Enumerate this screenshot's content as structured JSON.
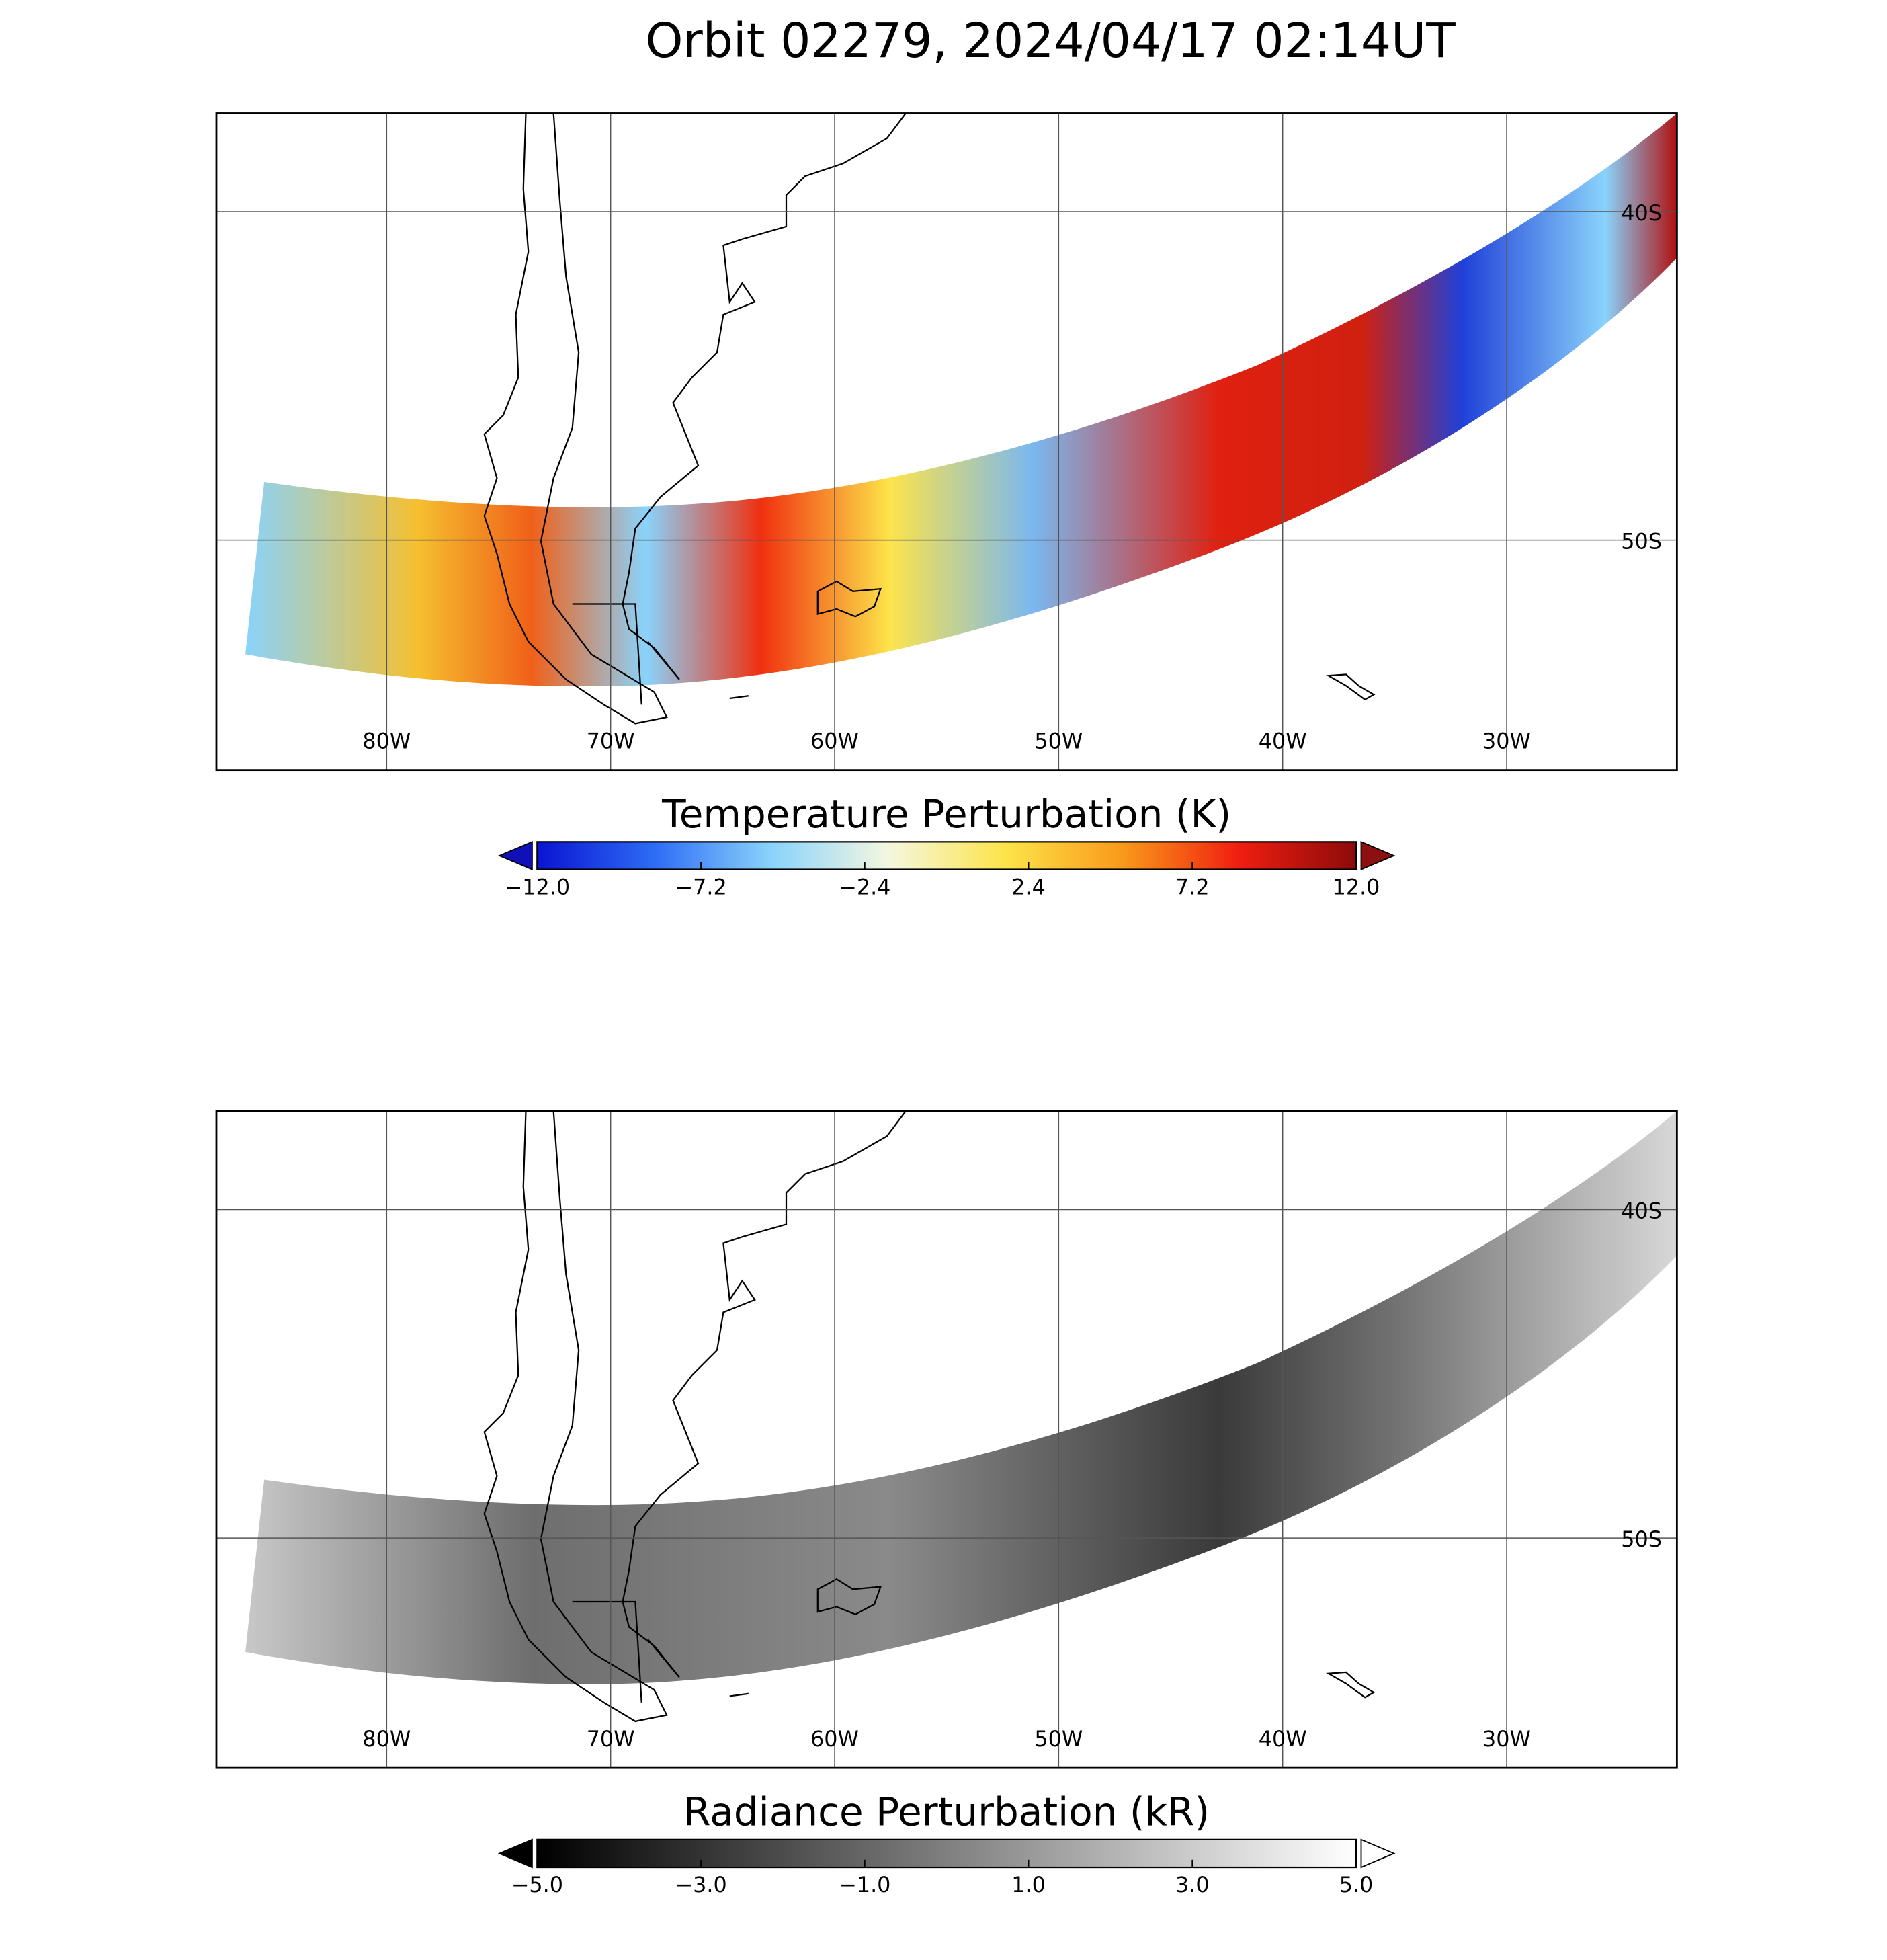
{
  "title": "Orbit 02279, 2024/04/17 02:14UT",
  "panels": [
    {
      "xlim": [
        -87.6,
        -22.4
      ],
      "ylim": [
        -57.0,
        -37.0
      ],
      "xticks": [
        {
          "value": -80,
          "label": "80W"
        },
        {
          "value": -70,
          "label": "70W"
        },
        {
          "value": -60,
          "label": "60W"
        },
        {
          "value": -50,
          "label": "50W"
        },
        {
          "value": -40,
          "label": "40W"
        },
        {
          "value": -30,
          "label": "30W"
        }
      ],
      "yticks": [
        {
          "value": -40,
          "label": "40S"
        },
        {
          "value": -50,
          "label": "50S"
        }
      ],
      "colorbar": {
        "title": "Temperature Perturbation (K)",
        "lim": [
          -12.0,
          12.0
        ],
        "ticks": [
          {
            "value": -12.0,
            "label": "−12.0"
          },
          {
            "value": -7.2,
            "label": "−7.2"
          },
          {
            "value": -2.4,
            "label": "−2.4"
          },
          {
            "value": 2.4,
            "label": "2.4"
          },
          {
            "value": 7.2,
            "label": "7.2"
          },
          {
            "value": 12.0,
            "label": "12.0"
          }
        ],
        "colormap": [
          "#0a14d2",
          "#2d6cf5",
          "#8ad3fb",
          "#f4f7e0",
          "#fde44a",
          "#f99a1a",
          "#f01e10",
          "#8c0a0a"
        ],
        "under_color": "#1010b8",
        "over_color": "#8c1010"
      }
    },
    {
      "xlim": [
        -87.6,
        -22.4
      ],
      "ylim": [
        -57.0,
        -37.0
      ],
      "xticks": [
        {
          "value": -80,
          "label": "80W"
        },
        {
          "value": -70,
          "label": "70W"
        },
        {
          "value": -60,
          "label": "60W"
        },
        {
          "value": -50,
          "label": "50W"
        },
        {
          "value": -40,
          "label": "40W"
        },
        {
          "value": -30,
          "label": "30W"
        }
      ],
      "yticks": [
        {
          "value": -40,
          "label": "40S"
        },
        {
          "value": -50,
          "label": "50S"
        }
      ],
      "colorbar": {
        "title": "Radiance Perturbation (kR)",
        "lim": [
          -5.0,
          5.0
        ],
        "ticks": [
          {
            "value": -5.0,
            "label": "−5.0"
          },
          {
            "value": -3.0,
            "label": "−3.0"
          },
          {
            "value": -1.0,
            "label": "−1.0"
          },
          {
            "value": 1.0,
            "label": "1.0"
          },
          {
            "value": 3.0,
            "label": "3.0"
          },
          {
            "value": 5.0,
            "label": "5.0"
          }
        ],
        "colormap": [
          "#000000",
          "#ffffff"
        ],
        "under_color": "#000000",
        "over_color": "#ffffff"
      }
    }
  ]
}
